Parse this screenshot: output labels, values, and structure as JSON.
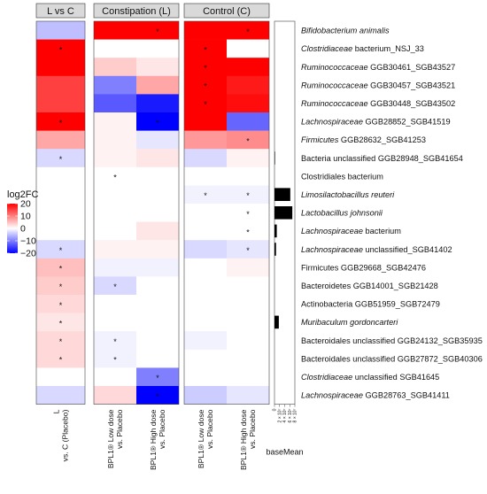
{
  "chart_data": {
    "type": "heatmap",
    "legend_title": "log2FC",
    "color_range": [
      -20,
      20
    ],
    "legend_ticks": [
      20,
      10,
      0,
      -10,
      -20
    ],
    "colors": {
      "high": "#ff0000",
      "mid": "#ffffff",
      "low": "#0000ff"
    },
    "panels": [
      {
        "title": "L vs C",
        "columns": [
          "L vs. C (Placebo)"
        ]
      },
      {
        "title": "Constipation (L)",
        "columns": [
          "BPL1® Low dose vs. Placebo",
          "BPL1® High dose vs. Placebo"
        ]
      },
      {
        "title": "Control (C)",
        "columns": [
          "BPL1® Low dose vs. Placebo",
          "BPL1® High dose vs. Placebo"
        ]
      }
    ],
    "rows": [
      {
        "genus": "Bifidobacterium animalis",
        "rest": "",
        "italic_genus": true,
        "italic_rest": true
      },
      {
        "genus": "Clostridiaceae",
        "rest": " bacterium_NSJ_33",
        "italic_genus": true,
        "italic_rest": false
      },
      {
        "genus": "Ruminococcaceae",
        "rest": " GGB30461_SGB43527",
        "italic_genus": true,
        "italic_rest": false
      },
      {
        "genus": "Ruminococcaceae",
        "rest": " GGB30457_SGB43521",
        "italic_genus": true,
        "italic_rest": false
      },
      {
        "genus": "Ruminococcaceae",
        "rest": " GGB30448_SGB43502",
        "italic_genus": true,
        "italic_rest": false
      },
      {
        "genus": "Lachnospiraceae",
        "rest": " GGB28852_SGB41519",
        "italic_genus": true,
        "italic_rest": false
      },
      {
        "genus": "Firmicutes",
        "rest": " GGB28632_SGB41253",
        "italic_genus": true,
        "italic_rest": false
      },
      {
        "genus": "Bacteria unclassified GGB28948_SGB41654",
        "rest": "",
        "italic_genus": false,
        "italic_rest": false
      },
      {
        "genus": "Clostridiales bacterium",
        "rest": "",
        "italic_genus": false,
        "italic_rest": false
      },
      {
        "genus": "Limosilactobacillus reuteri",
        "rest": "",
        "italic_genus": true,
        "italic_rest": true
      },
      {
        "genus": "Lactobacillus johnsonii",
        "rest": "",
        "italic_genus": true,
        "italic_rest": true
      },
      {
        "genus": "Lachnospiraceae",
        "rest": " bacterium",
        "italic_genus": true,
        "italic_rest": false
      },
      {
        "genus": "Lachnospiraceae",
        "rest": " unclassified_SGB41402",
        "italic_genus": true,
        "italic_rest": false
      },
      {
        "genus": "Firmicutes GGB29668_SGB42476",
        "rest": "",
        "italic_genus": false,
        "italic_rest": false
      },
      {
        "genus": "Bacteroidetes GGB14001_SGB21428",
        "rest": "",
        "italic_genus": false,
        "italic_rest": false
      },
      {
        "genus": "Actinobacteria GGB51959_SGB72479",
        "rest": "",
        "italic_genus": false,
        "italic_rest": false
      },
      {
        "genus": "Muribaculum gordoncarteri",
        "rest": "",
        "italic_genus": true,
        "italic_rest": true
      },
      {
        "genus": "Bacteroidales unclassified GGB24132_SGB35935",
        "rest": "",
        "italic_genus": false,
        "italic_rest": false
      },
      {
        "genus": "Bacteroidales unclassified GGB27872_SGB40306",
        "rest": "",
        "italic_genus": false,
        "italic_rest": false
      },
      {
        "genus": "Clostridiaceae",
        "rest": " unclassified SGB41645",
        "italic_genus": true,
        "italic_rest": false
      },
      {
        "genus": "Lachnospiraceae",
        "rest": " GGB28763_SGB41411",
        "italic_genus": true,
        "italic_rest": false
      }
    ],
    "values": [
      [
        -5,
        25,
        25,
        25,
        25
      ],
      [
        25,
        0,
        0,
        25,
        0
      ],
      [
        24,
        4,
        2,
        25,
        25
      ],
      [
        15,
        -10,
        7,
        22,
        18
      ],
      [
        15,
        -13,
        -18,
        23,
        19
      ],
      [
        25,
        1,
        -30,
        25,
        -12
      ],
      [
        7,
        1,
        -2,
        8,
        9
      ],
      [
        -3,
        1,
        2,
        -3,
        1
      ],
      [
        0,
        0,
        0,
        0,
        0
      ],
      [
        0,
        0,
        0,
        -1,
        -1
      ],
      [
        0,
        0,
        0,
        0,
        0
      ],
      [
        0,
        0,
        2,
        0,
        0
      ],
      [
        -3,
        1,
        1,
        -3,
        -2
      ],
      [
        5,
        -1,
        -1,
        0,
        1
      ],
      [
        4,
        -3,
        0,
        0,
        0
      ],
      [
        3,
        0,
        0,
        0,
        0
      ],
      [
        2,
        0,
        0,
        0,
        0
      ],
      [
        3,
        -1,
        0,
        -1,
        0
      ],
      [
        3,
        -1,
        0,
        0,
        0
      ],
      [
        0,
        0,
        -10,
        0,
        0
      ],
      [
        -3,
        3,
        -30,
        -4,
        -2
      ]
    ],
    "significance": [
      [
        0,
        0,
        1,
        0,
        1
      ],
      [
        1,
        0,
        0,
        1,
        0
      ],
      [
        0,
        0,
        0,
        1,
        0
      ],
      [
        0,
        0,
        0,
        1,
        0
      ],
      [
        0,
        0,
        0,
        1,
        0
      ],
      [
        1,
        0,
        1,
        0,
        0
      ],
      [
        0,
        0,
        0,
        0,
        1
      ],
      [
        1,
        0,
        0,
        0,
        0
      ],
      [
        0,
        1,
        0,
        0,
        0
      ],
      [
        0,
        0,
        0,
        1,
        1
      ],
      [
        0,
        0,
        0,
        0,
        1
      ],
      [
        0,
        0,
        0,
        0,
        1
      ],
      [
        1,
        0,
        0,
        0,
        1
      ],
      [
        1,
        0,
        0,
        0,
        0
      ],
      [
        1,
        1,
        0,
        0,
        0
      ],
      [
        1,
        0,
        0,
        0,
        0
      ],
      [
        1,
        0,
        0,
        0,
        0
      ],
      [
        1,
        1,
        0,
        0,
        0
      ],
      [
        1,
        1,
        0,
        0,
        0
      ],
      [
        0,
        0,
        1,
        0,
        0
      ],
      [
        0,
        0,
        1,
        0,
        0
      ]
    ],
    "star_symbol": "*",
    "baseMean": {
      "title": "baseMean",
      "ticks": [
        "0",
        "2 × 10⁷",
        "4 × 10⁷",
        "6 × 10⁷",
        "8 × 10⁷"
      ],
      "max": 80000000,
      "values": [
        0,
        0,
        0,
        0,
        0,
        0,
        0,
        2000000,
        0,
        62000000,
        70000000,
        9000000,
        6000000,
        0,
        0,
        0,
        17000000,
        0,
        0,
        0,
        0
      ]
    }
  }
}
